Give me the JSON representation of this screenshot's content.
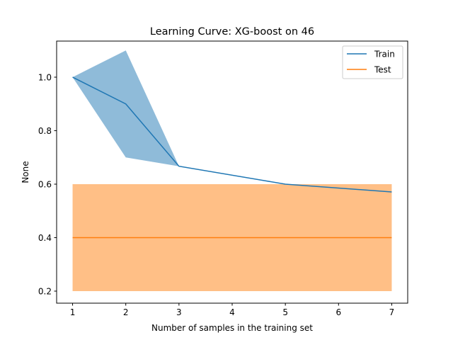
{
  "chart_data": {
    "type": "line",
    "title": "Learning Curve: XG-boost on 46",
    "xlabel": "Number of samples in the training set",
    "ylabel": "None",
    "xlim": [
      0.7,
      7.3
    ],
    "ylim": [
      0.155,
      1.135
    ],
    "xticks": [
      1,
      2,
      3,
      4,
      5,
      6,
      7
    ],
    "yticks": [
      0.2,
      0.4,
      0.6,
      0.8,
      1.0
    ],
    "ytick_labels": [
      "0.2",
      "0.4",
      "0.6",
      "0.8",
      "1.0"
    ],
    "grid": false,
    "legend_position": "top-right",
    "series": [
      {
        "name": "Train",
        "color": "#1f77b4",
        "band_color": "#1f77b4",
        "x": [
          1,
          2,
          3,
          5,
          7
        ],
        "values": [
          1.0,
          0.9,
          0.667,
          0.6,
          0.571
        ],
        "lower": [
          1.0,
          0.7,
          0.667,
          0.6,
          0.571
        ],
        "upper": [
          1.0,
          1.1,
          0.667,
          0.6,
          0.571
        ]
      },
      {
        "name": "Test",
        "color": "#ff7f0e",
        "band_color": "#ff7f0e",
        "x": [
          1,
          2,
          3,
          5,
          7
        ],
        "values": [
          0.4,
          0.4,
          0.4,
          0.4,
          0.4
        ],
        "lower": [
          0.2,
          0.2,
          0.2,
          0.2,
          0.2
        ],
        "upper": [
          0.6,
          0.6,
          0.6,
          0.6,
          0.6
        ]
      }
    ]
  }
}
